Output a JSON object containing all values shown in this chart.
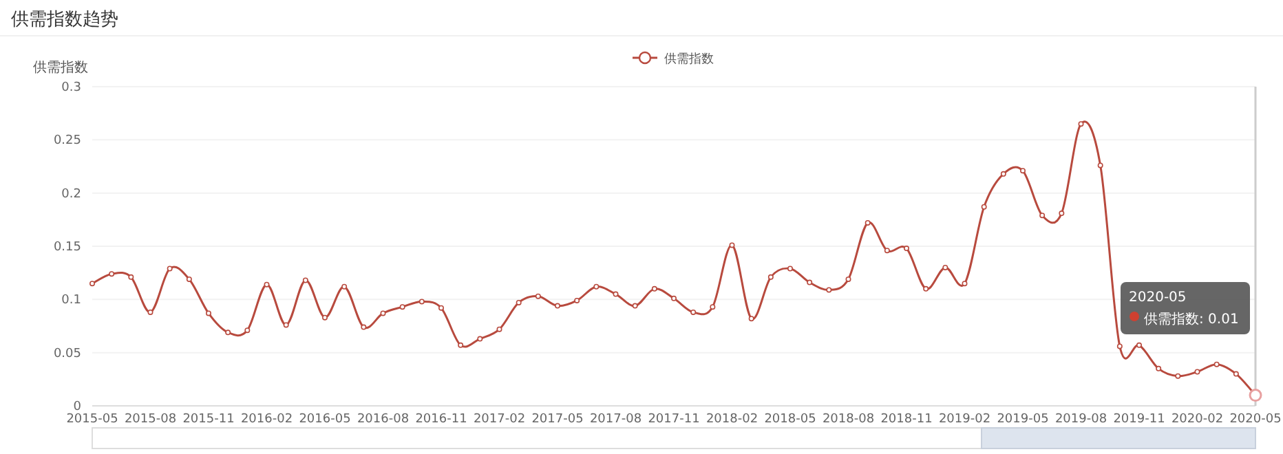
{
  "chart_data": {
    "type": "line",
    "title": "供需指数趋势",
    "ylabel": "供需指数",
    "legend": "top",
    "grid": "y",
    "marker": "circle",
    "line_style": "solid",
    "categories": [
      "2015-05",
      null,
      null,
      "2015-08",
      null,
      null,
      "2015-11",
      null,
      null,
      "2016-02",
      null,
      null,
      "2016-05",
      null,
      null,
      "2016-08",
      null,
      null,
      "2016-11",
      null,
      null,
      "2017-02",
      null,
      null,
      "2017-05",
      null,
      null,
      "2017-08",
      null,
      null,
      "2017-11",
      null,
      null,
      "2018-02",
      null,
      null,
      "2018-05",
      null,
      null,
      "2018-08",
      null,
      null,
      "2018-11",
      null,
      null,
      "2019-02",
      null,
      null,
      "2019-05",
      null,
      null,
      "2019-08",
      null,
      null,
      "2019-11",
      null,
      null,
      "2020-02",
      null,
      null,
      "2020-05"
    ],
    "series": [
      {
        "name": "供需指数",
        "color": "#b84a3e",
        "values": [
          0.115,
          0.124,
          0.121,
          0.088,
          0.129,
          0.119,
          0.087,
          0.069,
          0.071,
          0.114,
          0.076,
          0.118,
          0.083,
          0.112,
          0.074,
          0.087,
          0.093,
          0.098,
          0.092,
          0.057,
          0.063,
          0.072,
          0.097,
          0.103,
          0.094,
          0.099,
          0.112,
          0.105,
          0.094,
          0.11,
          0.101,
          0.088,
          0.093,
          0.151,
          0.082,
          0.121,
          0.129,
          0.116,
          0.109,
          0.119,
          0.172,
          0.146,
          0.148,
          0.11,
          0.13,
          0.115,
          0.187,
          0.218,
          0.221,
          0.179,
          0.181,
          0.265,
          0.226,
          0.056,
          0.057,
          0.035,
          0.028,
          0.032,
          0.039,
          0.03,
          0.01
        ]
      }
    ],
    "ylim": [
      0,
      0.3
    ],
    "yticks": [
      0,
      0.05,
      0.1,
      0.15,
      0.2,
      0.25,
      0.3
    ],
    "ref_lines": [
      {
        "axis": "x",
        "value": "2020-05",
        "color": "#cccccc"
      }
    ],
    "annotations": [
      "2020-05",
      "供需指数: 0.01"
    ]
  }
}
